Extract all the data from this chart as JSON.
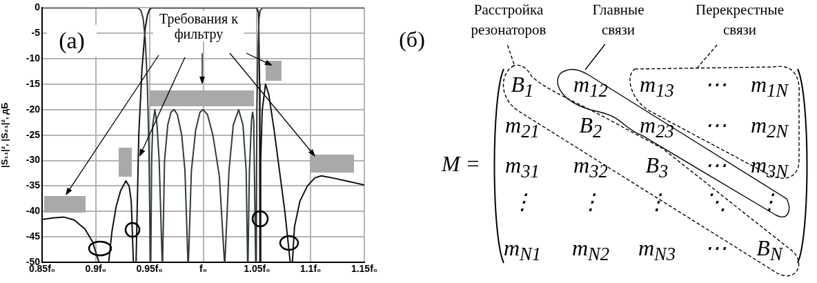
{
  "chart_data": [
    {
      "type": "line",
      "ylabel": "|S₁₁|², |S₂₁|², дБ",
      "xlim": [
        0.85,
        1.15
      ],
      "ylim": [
        -50,
        0
      ],
      "xticks": [
        {
          "value": 0.85,
          "label": "0.85f₀"
        },
        {
          "value": 0.9,
          "label": "0.9f₀"
        },
        {
          "value": 0.95,
          "label": "0.95f₀"
        },
        {
          "value": 1,
          "label": "f₀"
        },
        {
          "value": 1.05,
          "label": "1.05f₀"
        },
        {
          "value": 1.1,
          "label": "1.1f₀"
        },
        {
          "value": 1.15,
          "label": "1.15f₀"
        }
      ],
      "yticks": [
        0,
        -5,
        -10,
        -15,
        -20,
        -25,
        -30,
        -35,
        -40,
        -45,
        -50
      ],
      "grid": true,
      "series": [
        {
          "color": "#2f3b36",
          "x": [
            0.85,
            0.939,
            0.942,
            0.944,
            0.946,
            0.948,
            0.9495,
            0.9508,
            0.951,
            0.9512,
            0.952,
            0.953,
            0.955,
            0.957,
            0.959,
            0.9618,
            0.962,
            0.9622,
            0.964,
            0.967,
            0.97,
            0.973,
            0.976,
            0.98,
            0.983,
            0.9858,
            0.986,
            0.9862,
            0.989,
            0.993,
            0.997,
            1,
            1.004,
            1.009,
            1.015,
            1.0198,
            1.02,
            1.0202,
            1.024,
            1.028,
            1.033,
            1.037,
            1.04,
            1.0413,
            1.0415,
            1.0417,
            1.043,
            1.045,
            1.046,
            1.047,
            1.0488,
            1.049,
            1.0492,
            1.05,
            1.051,
            1.052,
            1.053,
            1.055,
            1.15
          ],
          "values": [
            0,
            0,
            -0.5,
            -2,
            -6,
            -15,
            -28,
            -50,
            null,
            -50,
            -30,
            -23,
            -20,
            -23,
            -30,
            -50,
            null,
            -50,
            -30,
            -23,
            -20.5,
            -20,
            -21,
            -25,
            -32,
            -50,
            null,
            -50,
            -32,
            -24,
            -20.5,
            -20,
            -21,
            -25,
            -33,
            -50,
            null,
            -50,
            -32,
            -23,
            -20,
            -23,
            -32,
            -50,
            null,
            -50,
            -32,
            -22,
            -20.5,
            -22,
            -50,
            null,
            -50,
            -20,
            -8,
            -2,
            -0.5,
            0,
            0
          ]
        },
        {
          "color": "#111111",
          "x": [
            0.85,
            0.86,
            0.87,
            0.88,
            0.89,
            0.897,
            0.903,
            0.908,
            0.912,
            0.915,
            0.919,
            0.923,
            0.928,
            0.931,
            0.933,
            0.935,
            0.936,
            0.9375,
            0.94,
            0.943,
            0.946,
            0.948,
            0.95,
            0.952,
            1.05,
            1.0515,
            1.0525,
            1.0528,
            1.053,
            1.0532,
            1.0535,
            1.055,
            1.058,
            1.061,
            1.066,
            1.071,
            1.076,
            1.079,
            1.081,
            1.082,
            1.083,
            1.085,
            1.09,
            1.097,
            1.104,
            1.11,
            1.12,
            1.135,
            1.15
          ],
          "values": [
            -41.6,
            -41.3,
            -41.1,
            -41.7,
            -43.5,
            -46,
            -50,
            null,
            -50,
            -44,
            -39,
            -36,
            -34,
            -35,
            -38,
            -50,
            null,
            -50,
            -25,
            -12,
            -4,
            -1.5,
            -0.3,
            0,
            0,
            -1,
            -15,
            -50,
            null,
            -50,
            -30,
            -20,
            -15,
            -17,
            -24,
            -32,
            -40,
            -46,
            -50,
            null,
            -50,
            -43,
            -38,
            -35,
            -33.4,
            -33,
            -33.4,
            -34.1,
            -34.8
          ]
        }
      ],
      "annotations": [
        "(а)",
        "Требования к фильтру"
      ]
    },
    {
      "type": "other",
      "annotations": [
        "(б)",
        "Расстройка резонаторов",
        "Главные связи",
        "Перекрестные связи",
        "M =",
        "B$_{1}$",
        "m$_{12}$",
        "m$_{13}$",
        "⋯",
        "m$_{1N}$",
        "m$_{21}$",
        "B$_{2}$",
        "m$_{23}$",
        "⋯",
        "m$_{2N}$",
        "m$_{31}$",
        "m$_{32}$",
        "B$_{3}$",
        "⋯",
        "m$_{3N}$",
        "⋮",
        "⋮",
        "⋮",
        "⋱",
        "⋮",
        "m$_{N1}$",
        "m$_{N2}$",
        "m$_{N3}$",
        "⋯",
        "B$_{N}$"
      ]
    }
  ]
}
